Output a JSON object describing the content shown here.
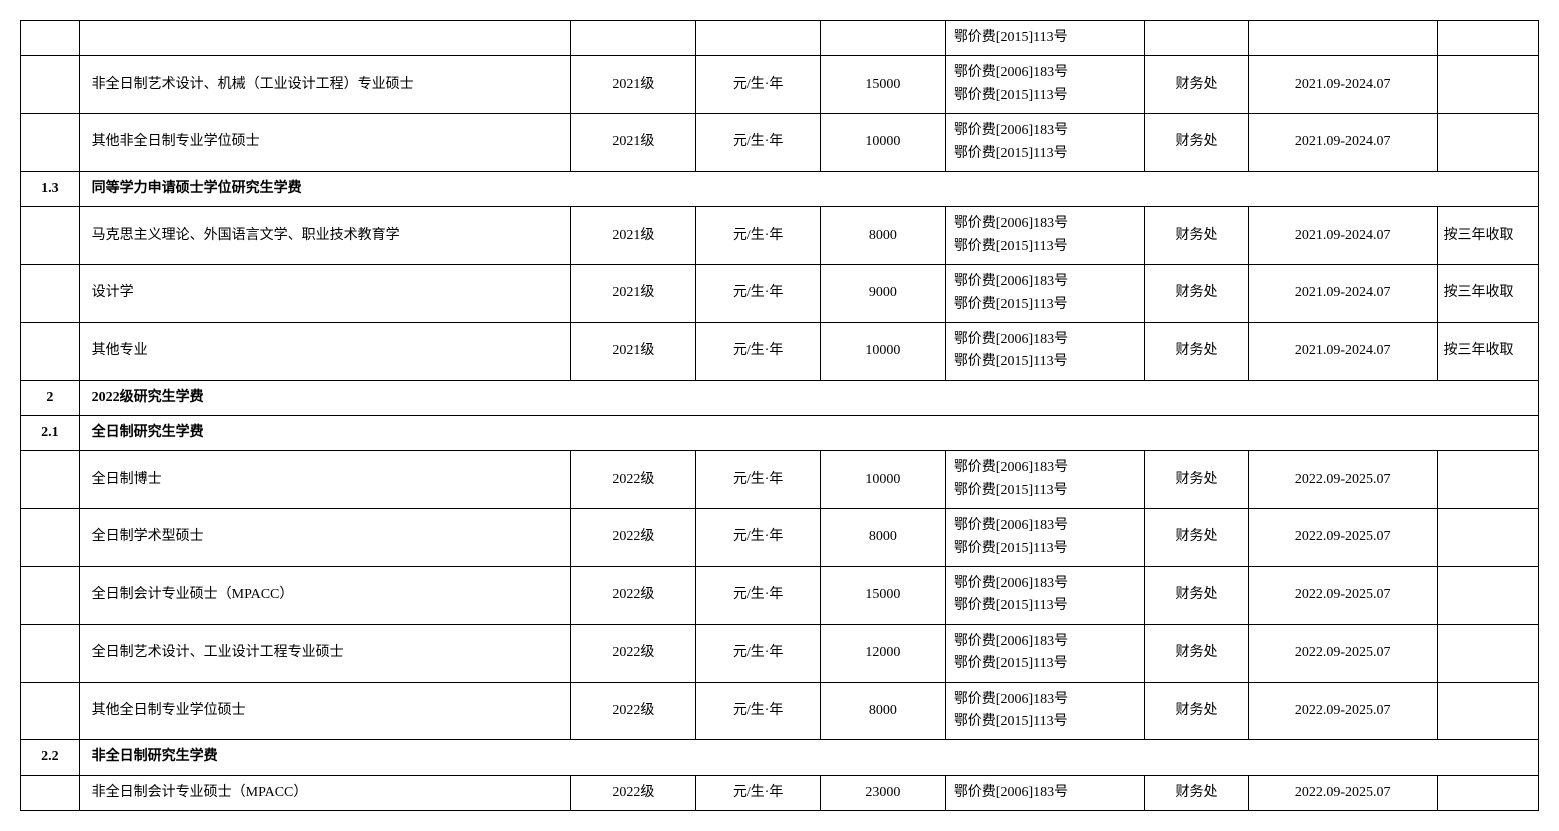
{
  "rows": [
    {
      "type": "data",
      "idx": "",
      "name": "",
      "grade": "",
      "unit": "",
      "amount": "",
      "basis": "鄂价费[2015]113号",
      "dept": "",
      "period": "",
      "note": ""
    },
    {
      "type": "data",
      "idx": "",
      "name": "非全日制艺术设计、机械（工业设计工程）专业硕士",
      "grade": "2021级",
      "unit": "元/生·年",
      "amount": "15000",
      "basis": "鄂价费[2006]183号\n鄂价费[2015]113号",
      "dept": "财务处",
      "period": "2021.09-2024.07",
      "note": ""
    },
    {
      "type": "data",
      "idx": "",
      "name": "其他非全日制专业学位硕士",
      "grade": "2021级",
      "unit": "元/生·年",
      "amount": "10000",
      "basis": "鄂价费[2006]183号\n鄂价费[2015]113号",
      "dept": "财务处",
      "period": "2021.09-2024.07",
      "note": ""
    },
    {
      "type": "section",
      "idx": "1.3",
      "title": "同等学力申请硕士学位研究生学费"
    },
    {
      "type": "data",
      "idx": "",
      "name": "马克思主义理论、外国语言文学、职业技术教育学",
      "grade": "2021级",
      "unit": "元/生·年",
      "amount": "8000",
      "basis": "鄂价费[2006]183号\n鄂价费[2015]113号",
      "dept": "财务处",
      "period": "2021.09-2024.07",
      "note": "按三年收取"
    },
    {
      "type": "data",
      "idx": "",
      "name": "设计学",
      "grade": "2021级",
      "unit": "元/生·年",
      "amount": "9000",
      "basis": "鄂价费[2006]183号\n鄂价费[2015]113号",
      "dept": "财务处",
      "period": "2021.09-2024.07",
      "note": "按三年收取"
    },
    {
      "type": "data",
      "idx": "",
      "name": "其他专业",
      "grade": "2021级",
      "unit": "元/生·年",
      "amount": "10000",
      "basis": "鄂价费[2006]183号\n鄂价费[2015]113号",
      "dept": "财务处",
      "period": "2021.09-2024.07",
      "note": "按三年收取"
    },
    {
      "type": "section",
      "idx": "2",
      "title": "2022级研究生学费"
    },
    {
      "type": "section",
      "idx": "2.1",
      "title": "全日制研究生学费"
    },
    {
      "type": "data",
      "idx": "",
      "name": "全日制博士",
      "grade": "2022级",
      "unit": "元/生·年",
      "amount": "10000",
      "basis": "鄂价费[2006]183号\n鄂价费[2015]113号",
      "dept": "财务处",
      "period": "2022.09-2025.07",
      "note": ""
    },
    {
      "type": "data",
      "idx": "",
      "name": "全日制学术型硕士",
      "grade": "2022级",
      "unit": "元/生·年",
      "amount": "8000",
      "basis": "鄂价费[2006]183号\n鄂价费[2015]113号",
      "dept": "财务处",
      "period": "2022.09-2025.07",
      "note": ""
    },
    {
      "type": "data",
      "idx": "",
      "name": "全日制会计专业硕士（MPACC）",
      "grade": "2022级",
      "unit": "元/生·年",
      "amount": "15000",
      "basis": "鄂价费[2006]183号\n鄂价费[2015]113号",
      "dept": "财务处",
      "period": "2022.09-2025.07",
      "note": ""
    },
    {
      "type": "data",
      "idx": "",
      "name": "全日制艺术设计、工业设计工程专业硕士",
      "grade": "2022级",
      "unit": "元/生·年",
      "amount": "12000",
      "basis": "鄂价费[2006]183号\n鄂价费[2015]113号",
      "dept": "财务处",
      "period": "2022.09-2025.07",
      "note": ""
    },
    {
      "type": "data",
      "idx": "",
      "name": "其他全日制专业学位硕士",
      "grade": "2022级",
      "unit": "元/生·年",
      "amount": "8000",
      "basis": "鄂价费[2006]183号\n鄂价费[2015]113号",
      "dept": "财务处",
      "period": "2022.09-2025.07",
      "note": ""
    },
    {
      "type": "section",
      "idx": "2.2",
      "title": "非全日制研究生学费"
    },
    {
      "type": "data",
      "idx": "",
      "name": "非全日制会计专业硕士（MPACC）",
      "grade": "2022级",
      "unit": "元/生·年",
      "amount": "23000",
      "basis": "鄂价费[2006]183号",
      "dept": "财务处",
      "period": "2022.09-2025.07",
      "note": ""
    }
  ],
  "columns": {
    "widths": [
      "38px",
      "440px",
      "100px",
      "100px",
      "100px",
      "170px",
      "80px",
      "160px",
      "80px"
    ]
  },
  "colors": {
    "border": "#000000",
    "background": "#ffffff",
    "text": "#000000"
  },
  "typography": {
    "font_family": "SimSun",
    "font_size": 14,
    "line_height": 1.6
  }
}
